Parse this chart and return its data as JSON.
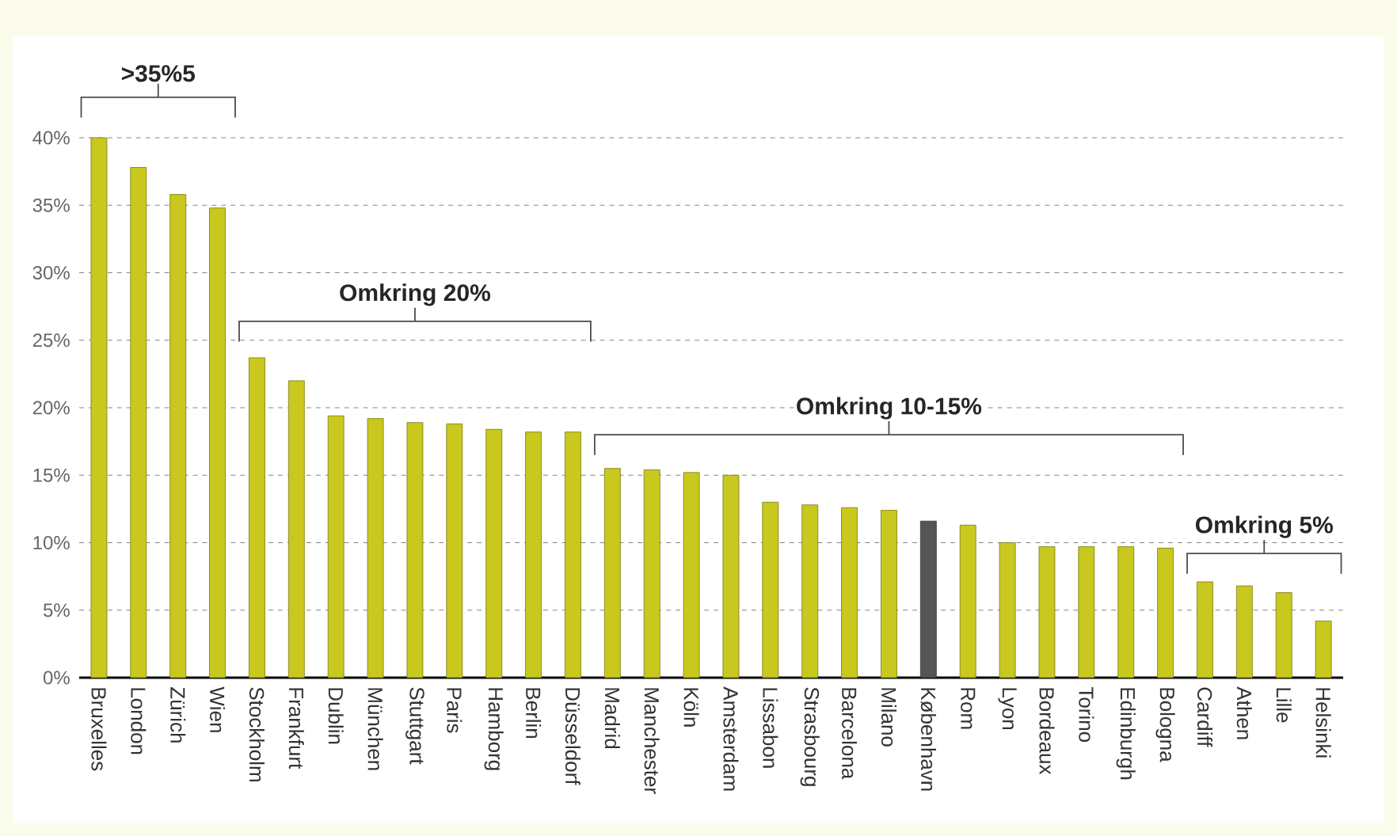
{
  "chart_data": {
    "type": "bar",
    "categories": [
      "Bruxelles",
      "London",
      "Zürich",
      "Wien",
      "Stockholm",
      "Frankfurt",
      "Dublin",
      "München",
      "Stuttgart",
      "Paris",
      "Hamborg",
      "Berlin",
      "Düsseldorf",
      "Madrid",
      "Manchester",
      "Köln",
      "Amsterdam",
      "Lissabon",
      "Strasbourg",
      "Barcelona",
      "Milano",
      "København",
      "Rom",
      "Lyon",
      "Bordeaux",
      "Torino",
      "Edinburgh",
      "Bologna",
      "Cardiff",
      "Athen",
      "Lille",
      "Helsinki"
    ],
    "values": [
      40.0,
      37.8,
      35.8,
      34.8,
      23.7,
      22.0,
      19.4,
      19.2,
      18.9,
      18.8,
      18.4,
      18.2,
      18.2,
      15.5,
      15.4,
      15.2,
      15.0,
      13.0,
      12.8,
      12.6,
      12.4,
      11.6,
      11.3,
      10.0,
      9.7,
      9.7,
      9.7,
      9.6,
      7.1,
      6.8,
      6.3,
      4.2
    ],
    "colors": [
      "#c8c81e",
      "#c8c81e",
      "#c8c81e",
      "#c8c81e",
      "#c8c81e",
      "#c8c81e",
      "#c8c81e",
      "#c8c81e",
      "#c8c81e",
      "#c8c81e",
      "#c8c81e",
      "#c8c81e",
      "#c8c81e",
      "#c8c81e",
      "#c8c81e",
      "#c8c81e",
      "#c8c81e",
      "#c8c81e",
      "#c8c81e",
      "#c8c81e",
      "#c8c81e",
      "#555555",
      "#c8c81e",
      "#c8c81e",
      "#c8c81e",
      "#c8c81e",
      "#c8c81e",
      "#c8c81e",
      "#c8c81e",
      "#c8c81e",
      "#c8c81e",
      "#c8c81e"
    ],
    "ylim": [
      0,
      40
    ],
    "yticks": [
      {
        "value": 0,
        "label": "0%"
      },
      {
        "value": 5,
        "label": "5%"
      },
      {
        "value": 10,
        "label": "10%"
      },
      {
        "value": 15,
        "label": "15%"
      },
      {
        "value": 20,
        "label": "20%"
      },
      {
        "value": 25,
        "label": "25%"
      },
      {
        "value": 30,
        "label": "30%"
      },
      {
        "value": 35,
        "label": "35%"
      },
      {
        "value": 40,
        "label": "40%"
      }
    ],
    "grid": "y",
    "annotations": [
      ">35%5",
      "Omkring 20%",
      "Omkring 10-15%",
      "Omkring 5%"
    ]
  }
}
